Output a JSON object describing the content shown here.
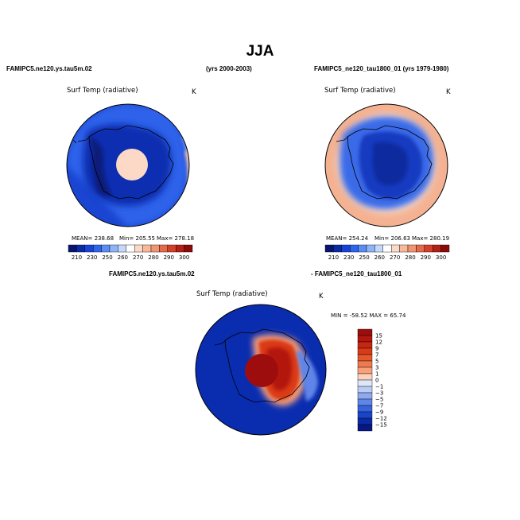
{
  "figure": {
    "title": "JJA",
    "left_case": "FAMIPC5.ne120.ys.tau5m.02",
    "left_years": "(yrs 2000-2003)",
    "right_case_line": "FAMIPC5_ne120_tau1800_01 (yrs 1979-1980)",
    "diff_case_a": "FAMIPC5.ne120.ys.tau5m.02",
    "diff_case_b": "- FAMIPC5_ne120_tau1800_01"
  },
  "chart_data": [
    {
      "type": "heatmap",
      "title": "Surf Temp (radiative)",
      "units": "K",
      "projection": "south polar stereographic",
      "stats": {
        "mean_text": "MEAN= 238.68",
        "min_text": "Min= 205.55",
        "max_text": "Max= 278.18",
        "mean": 238.68,
        "min": 205.55,
        "max": 278.18
      },
      "colorbar": {
        "labels": [
          "210",
          "230",
          "250",
          "260",
          "270",
          "280",
          "290",
          "300"
        ],
        "colors": [
          "#0a1370",
          "#0a2aa6",
          "#1743d6",
          "#2e64ee",
          "#5a8cf5",
          "#8fb3f8",
          "#c4d8fb",
          "#ffffff",
          "#fcd9c6",
          "#f8b89c",
          "#f19472",
          "#e5694a",
          "#d2402a",
          "#b51f15",
          "#8c0a0a"
        ]
      }
    },
    {
      "type": "heatmap",
      "title": "Surf Temp (radiative)",
      "units": "K",
      "projection": "south polar stereographic",
      "stats": {
        "mean_text": "MEAN= 254.24",
        "min_text": "Min= 206.63",
        "max_text": "Max= 280.19",
        "mean": 254.24,
        "min": 206.63,
        "max": 280.19
      },
      "colorbar": {
        "labels": [
          "210",
          "230",
          "250",
          "260",
          "270",
          "280",
          "290",
          "300"
        ],
        "colors": [
          "#0a1370",
          "#0a2aa6",
          "#1743d6",
          "#2e64ee",
          "#5a8cf5",
          "#8fb3f8",
          "#c4d8fb",
          "#ffffff",
          "#fcd9c6",
          "#f8b89c",
          "#f19472",
          "#e5694a",
          "#d2402a",
          "#b51f15",
          "#8c0a0a"
        ]
      }
    },
    {
      "type": "heatmap",
      "title": "Surf Temp (radiative)",
      "units": "K",
      "projection": "south polar stereographic",
      "stats": {
        "text": "MIN = -58.52 MAX =  65.74",
        "min": -58.52,
        "max": 65.74
      },
      "colorbar": {
        "orientation": "vertical",
        "labels": [
          "15",
          "12",
          "9",
          "7",
          "5",
          "3",
          "1",
          "0",
          "−1",
          "−3",
          "−5",
          "−7",
          "−9",
          "−12",
          "−15"
        ],
        "colors": [
          "#9e0d0d",
          "#b3160f",
          "#c72612",
          "#d93a18",
          "#e5582c",
          "#f07a4e",
          "#f8a07a",
          "#fdd2bd",
          "#dde7f9",
          "#b9ccf5",
          "#8ea9ef",
          "#5f85e8",
          "#3763dd",
          "#1a45c9",
          "#0a2ba6",
          "#071784"
        ]
      }
    }
  ]
}
